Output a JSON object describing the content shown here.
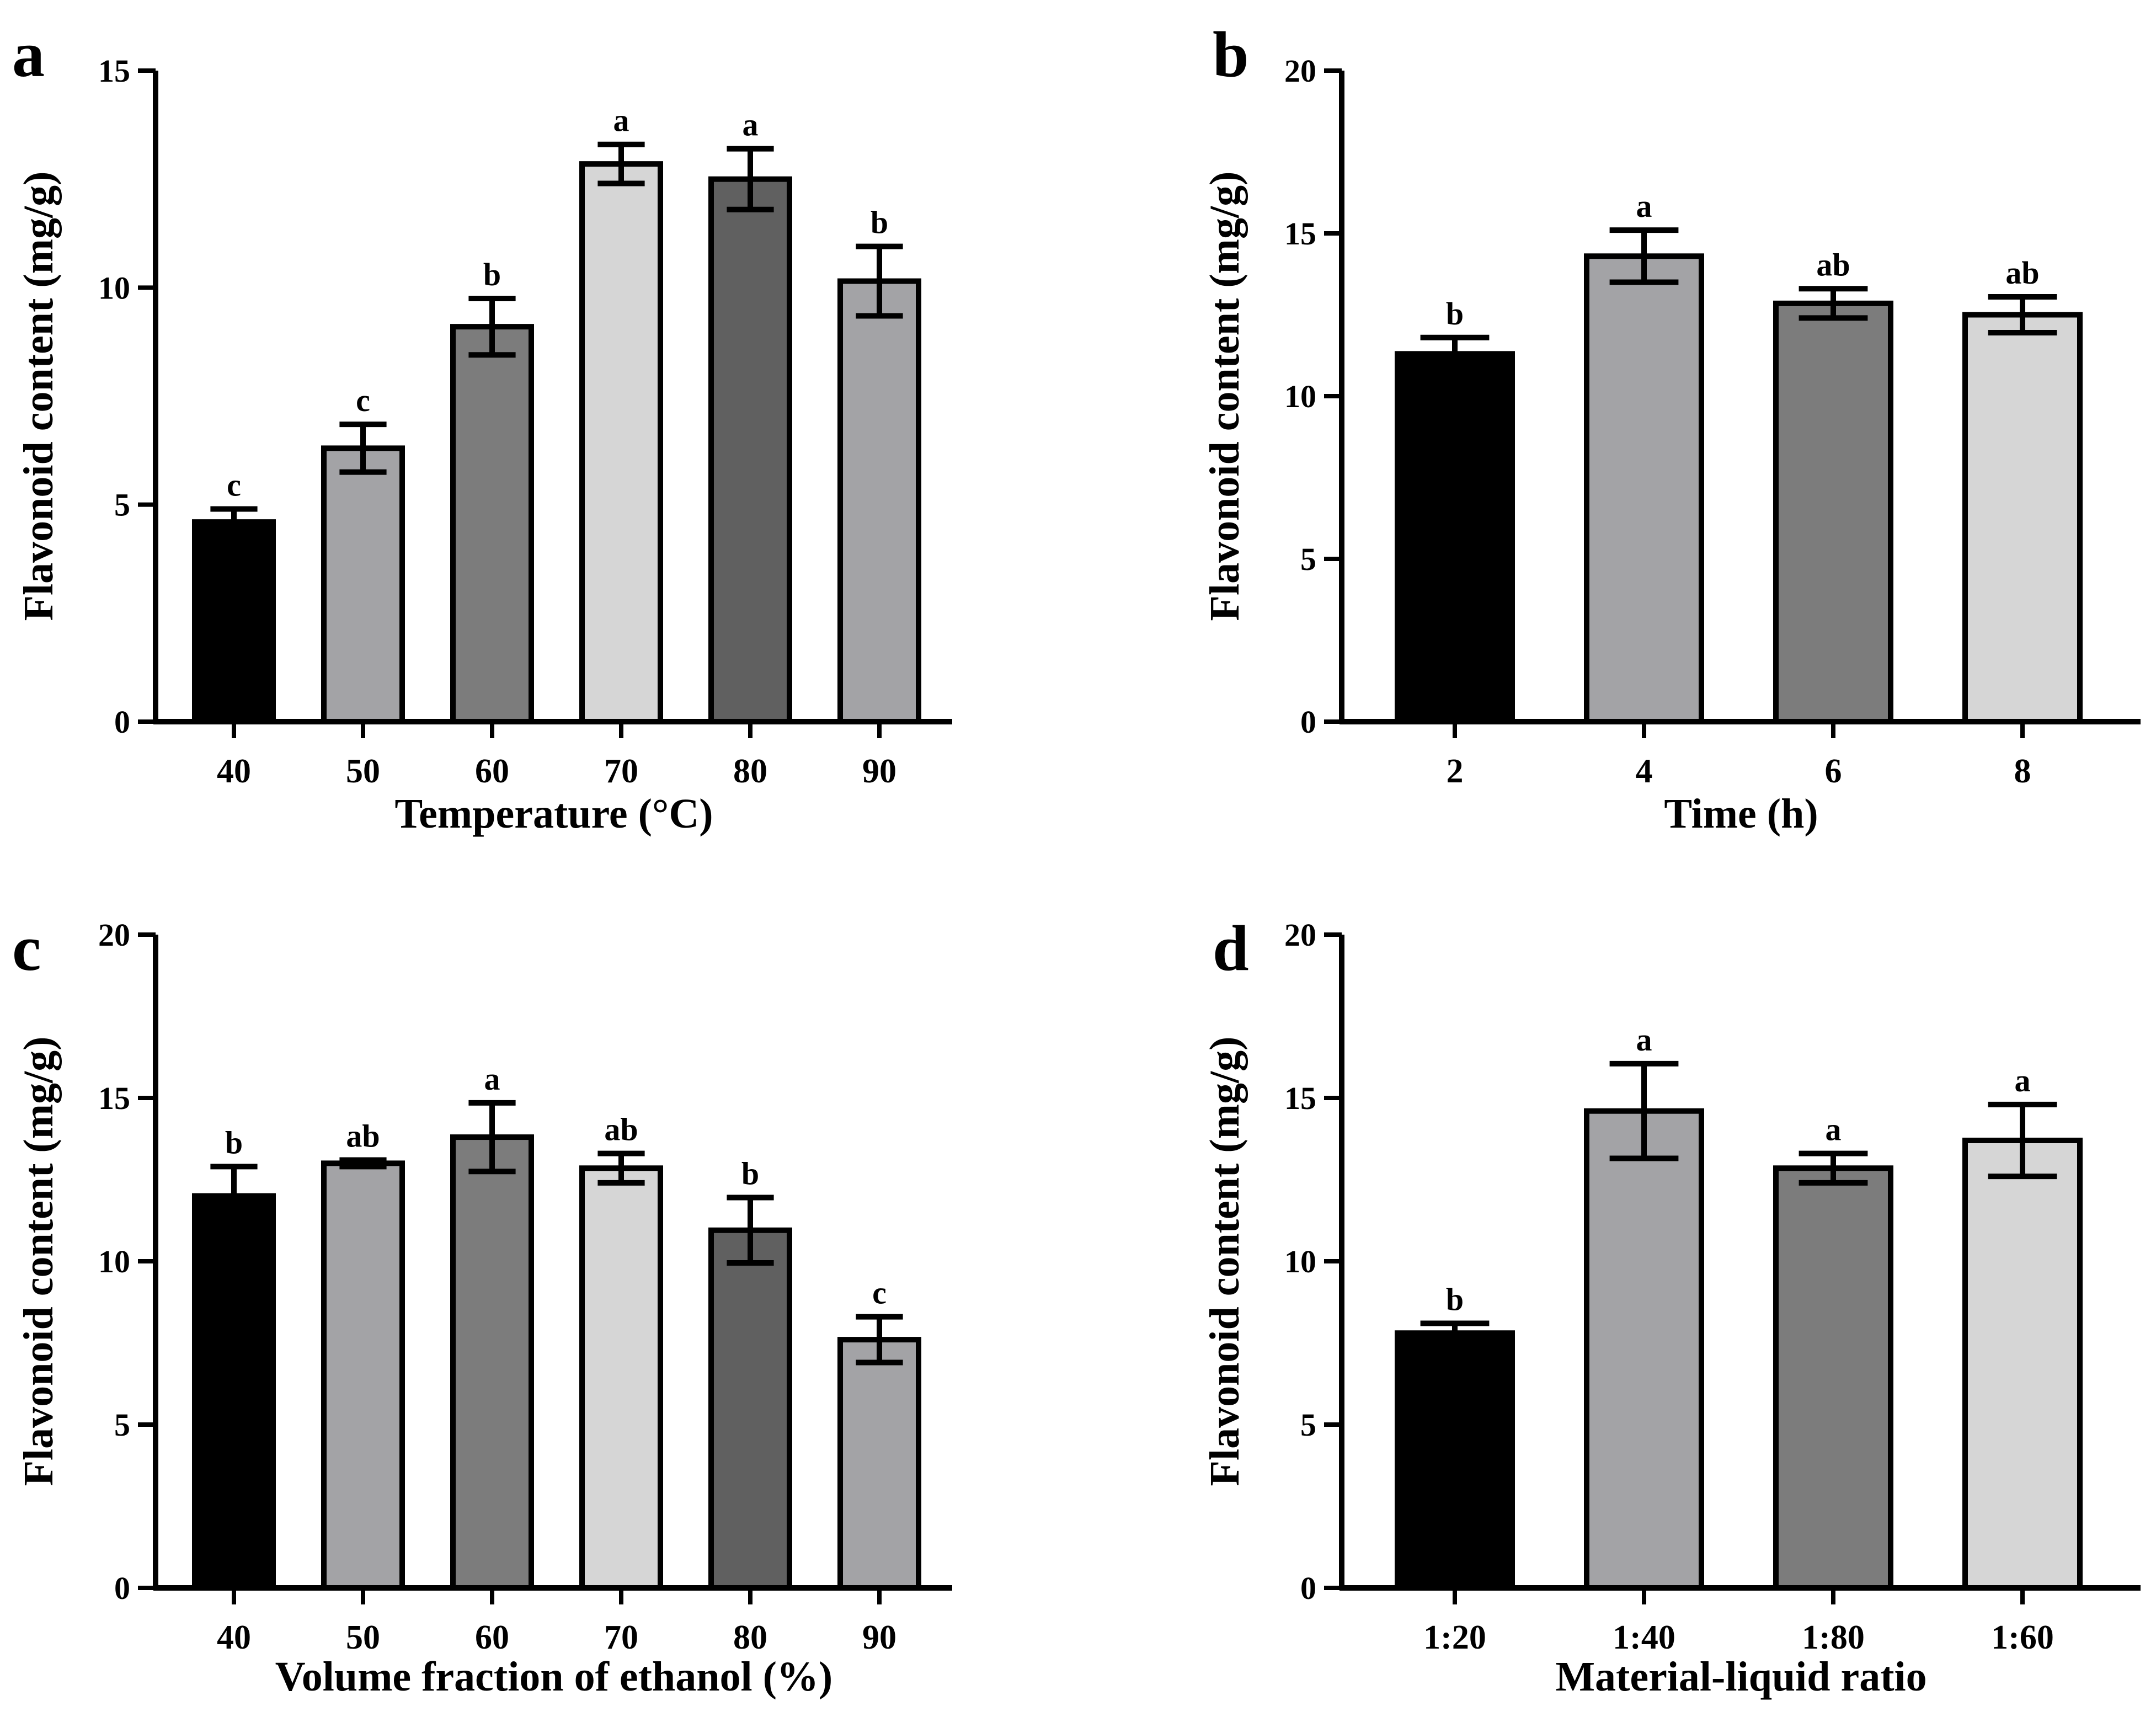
{
  "chart_data": [
    {
      "type": "bar",
      "panel_label": "a",
      "xlabel": "Temperature (°C)",
      "ylabel": "Flavonoid content (mg/g)",
      "ylim": [
        0,
        15
      ],
      "yticks": [
        0,
        5,
        10,
        15
      ],
      "categories": [
        "40",
        "50",
        "60",
        "70",
        "80",
        "90"
      ],
      "values": [
        4.6,
        6.3,
        9.1,
        12.85,
        12.5,
        10.15
      ],
      "errors": [
        0.3,
        0.55,
        0.65,
        0.45,
        0.7,
        0.8
      ],
      "significance": [
        "c",
        "c",
        "b",
        "a",
        "a",
        "b"
      ],
      "colors": [
        "#000000",
        "#a3a3a6",
        "#7c7c7c",
        "#d6d6d6",
        "#606060",
        "#a3a3a6"
      ],
      "grid": false,
      "legend": "none"
    },
    {
      "type": "bar",
      "panel_label": "b",
      "xlabel": "Time (h)",
      "ylabel": "Flavonoid content (mg/g)",
      "ylim": [
        0,
        20
      ],
      "yticks": [
        0,
        5,
        10,
        15,
        20
      ],
      "categories": [
        "2",
        "4",
        "6",
        "8"
      ],
      "values": [
        11.3,
        14.3,
        12.85,
        12.5
      ],
      "errors": [
        0.5,
        0.8,
        0.45,
        0.55
      ],
      "significance": [
        "b",
        "a",
        "ab",
        "ab"
      ],
      "colors": [
        "#000000",
        "#a3a3a6",
        "#7c7c7c",
        "#d6d6d6"
      ],
      "grid": false,
      "legend": "none"
    },
    {
      "type": "bar",
      "panel_label": "c",
      "xlabel": "Volume fraction of ethanol (%)",
      "ylabel": "Flavonoid content (mg/g)",
      "ylim": [
        0,
        20
      ],
      "yticks": [
        0,
        5,
        10,
        15,
        20
      ],
      "categories": [
        "40",
        "50",
        "60",
        "70",
        "80",
        "90"
      ],
      "values": [
        12.0,
        13.0,
        13.8,
        12.85,
        10.95,
        7.6
      ],
      "errors": [
        0.9,
        0.1,
        1.05,
        0.45,
        1.0,
        0.7
      ],
      "significance": [
        "b",
        "ab",
        "a",
        "ab",
        "b",
        "c"
      ],
      "colors": [
        "#000000",
        "#a3a3a6",
        "#7c7c7c",
        "#d6d6d6",
        "#606060",
        "#a3a3a6"
      ],
      "grid": false,
      "legend": "none"
    },
    {
      "type": "bar",
      "panel_label": "d",
      "xlabel": "Material-liquid ratio",
      "ylabel": "Flavonoid content (mg/g)",
      "ylim": [
        0,
        20
      ],
      "yticks": [
        0,
        5,
        10,
        15,
        20
      ],
      "categories": [
        "1:20",
        "1:40",
        "1:80",
        "1:60"
      ],
      "values": [
        7.8,
        14.6,
        12.85,
        13.7
      ],
      "errors": [
        0.3,
        1.45,
        0.45,
        1.1
      ],
      "significance": [
        "b",
        "a",
        "a",
        "a"
      ],
      "colors": [
        "#000000",
        "#a3a3a6",
        "#7c7c7c",
        "#d6d6d6"
      ],
      "grid": false,
      "legend": "none"
    }
  ]
}
